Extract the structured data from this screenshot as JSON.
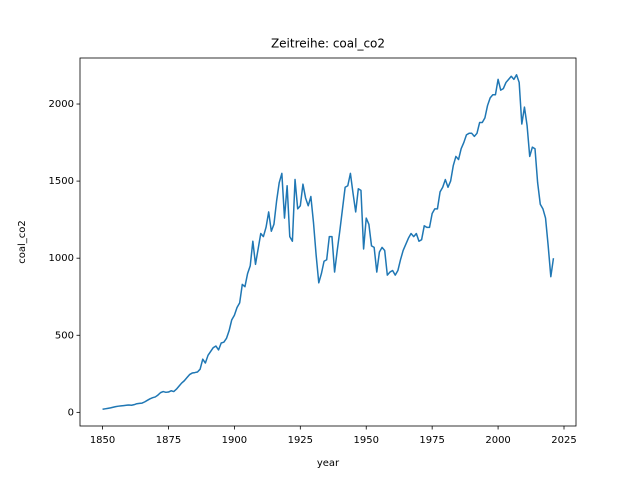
{
  "chart_data": {
    "type": "line",
    "title": "Zeitreihe: coal_co2",
    "x_label": "year",
    "y_label": "coal_co2",
    "x": [
      1850,
      1851,
      1852,
      1853,
      1854,
      1855,
      1856,
      1857,
      1858,
      1859,
      1860,
      1861,
      1862,
      1863,
      1864,
      1865,
      1866,
      1867,
      1868,
      1869,
      1870,
      1871,
      1872,
      1873,
      1874,
      1875,
      1876,
      1877,
      1878,
      1879,
      1880,
      1881,
      1882,
      1883,
      1884,
      1885,
      1886,
      1887,
      1888,
      1889,
      1890,
      1891,
      1892,
      1893,
      1894,
      1895,
      1896,
      1897,
      1898,
      1899,
      1900,
      1901,
      1902,
      1903,
      1904,
      1905,
      1906,
      1907,
      1908,
      1909,
      1910,
      1911,
      1912,
      1913,
      1914,
      1915,
      1916,
      1917,
      1918,
      1919,
      1920,
      1921,
      1922,
      1923,
      1924,
      1925,
      1926,
      1927,
      1928,
      1929,
      1930,
      1931,
      1932,
      1933,
      1934,
      1935,
      1936,
      1937,
      1938,
      1939,
      1940,
      1941,
      1942,
      1943,
      1944,
      1945,
      1946,
      1947,
      1948,
      1949,
      1950,
      1951,
      1952,
      1953,
      1954,
      1955,
      1956,
      1957,
      1958,
      1959,
      1960,
      1961,
      1962,
      1963,
      1964,
      1965,
      1966,
      1967,
      1968,
      1969,
      1970,
      1971,
      1972,
      1973,
      1974,
      1975,
      1976,
      1977,
      1978,
      1979,
      1980,
      1981,
      1982,
      1983,
      1984,
      1985,
      1986,
      1987,
      1988,
      1989,
      1990,
      1991,
      1992,
      1993,
      1994,
      1995,
      1996,
      1997,
      1998,
      1999,
      2000,
      2001,
      2002,
      2003,
      2004,
      2005,
      2006,
      2007,
      2008,
      2009,
      2010,
      2011,
      2012,
      2013,
      2014,
      2015,
      2016,
      2017,
      2018,
      2019,
      2020,
      2021
    ],
    "series": [
      {
        "name": "coal_co2",
        "color": "#1f77b4",
        "values": [
          20,
          23,
          26,
          29,
          33,
          37,
          40,
          42,
          44,
          46,
          48,
          46,
          50,
          56,
          58,
          60,
          68,
          78,
          88,
          95,
          100,
          112,
          128,
          135,
          130,
          132,
          140,
          135,
          150,
          170,
          190,
          205,
          225,
          245,
          255,
          258,
          262,
          280,
          345,
          320,
          370,
          395,
          420,
          430,
          405,
          450,
          455,
          480,
          530,
          600,
          630,
          680,
          710,
          830,
          815,
          900,
          950,
          1110,
          960,
          1060,
          1160,
          1140,
          1200,
          1300,
          1175,
          1220,
          1370,
          1490,
          1550,
          1260,
          1470,
          1140,
          1110,
          1510,
          1320,
          1340,
          1480,
          1390,
          1340,
          1400,
          1230,
          1020,
          840,
          900,
          980,
          990,
          1140,
          1140,
          910,
          1050,
          1180,
          1320,
          1460,
          1470,
          1550,
          1420,
          1300,
          1450,
          1440,
          1060,
          1260,
          1220,
          1080,
          1070,
          910,
          1040,
          1070,
          1050,
          890,
          910,
          920,
          890,
          920,
          990,
          1050,
          1090,
          1130,
          1160,
          1140,
          1160,
          1110,
          1120,
          1210,
          1200,
          1200,
          1290,
          1320,
          1320,
          1430,
          1460,
          1510,
          1460,
          1500,
          1600,
          1660,
          1640,
          1710,
          1750,
          1800,
          1810,
          1810,
          1790,
          1810,
          1880,
          1880,
          1910,
          1990,
          2040,
          2060,
          2060,
          2160,
          2090,
          2100,
          2140,
          2160,
          2180,
          2160,
          2190,
          2140,
          1870,
          1980,
          1860,
          1660,
          1720,
          1710,
          1490,
          1350,
          1320,
          1260,
          1080,
          880,
          1000
        ]
      }
    ],
    "xlim": [
      1841.45,
      2029.55
    ],
    "xticks": [
      1850,
      1875,
      1900,
      1925,
      1950,
      1975,
      2000,
      2025
    ],
    "ylim": [
      -88.5,
      2298.5
    ],
    "yticks": [
      0,
      500,
      1000,
      1500,
      2000
    ],
    "grid": false
  }
}
